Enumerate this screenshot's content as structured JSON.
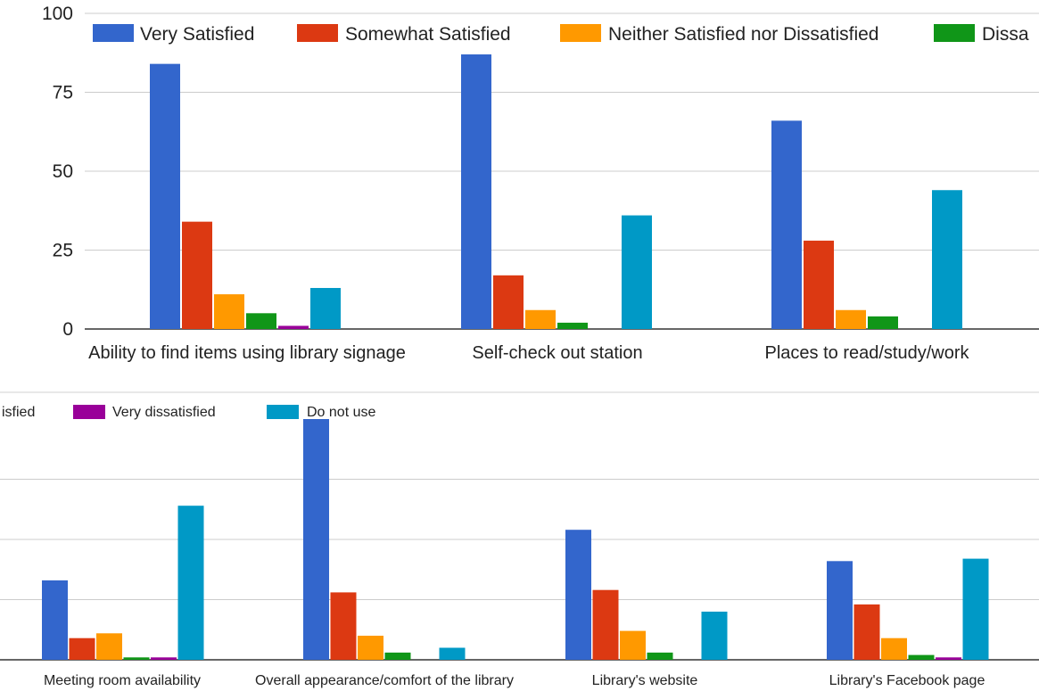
{
  "chart_data": [
    {
      "type": "bar",
      "categories": [
        "Ability to find items using library signage",
        "Self-check out station",
        "Places to read/study/work"
      ],
      "ylim": [
        0,
        100
      ],
      "yticks": [
        "0",
        "25",
        "50",
        "75",
        "100"
      ],
      "grid": true,
      "legend_position": "top",
      "series": [
        {
          "name": "Very Satisfied",
          "color": "#3366cc",
          "values": [
            84,
            87,
            66
          ]
        },
        {
          "name": "Somewhat Satisfied",
          "color": "#dc3912",
          "values": [
            34,
            17,
            28
          ]
        },
        {
          "name": "Neither Satisfied nor Dissatisfied",
          "color": "#ff9900",
          "values": [
            11,
            6,
            6
          ]
        },
        {
          "name": "Dissatisfied",
          "color": "#109618",
          "values": [
            5,
            2,
            4
          ]
        },
        {
          "name": "Very dissatisfied",
          "color": "#990099",
          "values": [
            1,
            0,
            0
          ]
        },
        {
          "name": "Do not use",
          "color": "#0099c6",
          "values": [
            13,
            36,
            44
          ]
        }
      ]
    },
    {
      "type": "bar",
      "categories": [
        "Meeting room availability",
        "Overall appearance/comfort of the library",
        "Library's website",
        "Library's Facebook page"
      ],
      "ylim": [
        0,
        100
      ],
      "grid": true,
      "legend_position": "top",
      "series": [
        {
          "name": "Dissatisfied",
          "color": "#109618",
          "values": [
            1,
            3,
            3,
            2
          ]
        },
        {
          "name": "Very dissatisfied",
          "color": "#990099",
          "values": [
            1,
            0,
            0,
            1
          ]
        },
        {
          "name": "Do not use",
          "color": "#0099c6",
          "values": [
            64,
            5,
            20,
            42
          ]
        },
        {
          "name": "Very Satisfied",
          "color": "#3366cc",
          "values": [
            33,
            100,
            54,
            41
          ]
        },
        {
          "name": "Somewhat Satisfied",
          "color": "#dc3912",
          "values": [
            9,
            28,
            29,
            23
          ]
        },
        {
          "name": "Neither Satisfied nor Dissatisfied",
          "color": "#ff9900",
          "values": [
            11,
            10,
            12,
            9
          ]
        }
      ]
    }
  ],
  "legend_top_partial_label": "Dissa",
  "legend_bottom_partial_label": "isfied"
}
